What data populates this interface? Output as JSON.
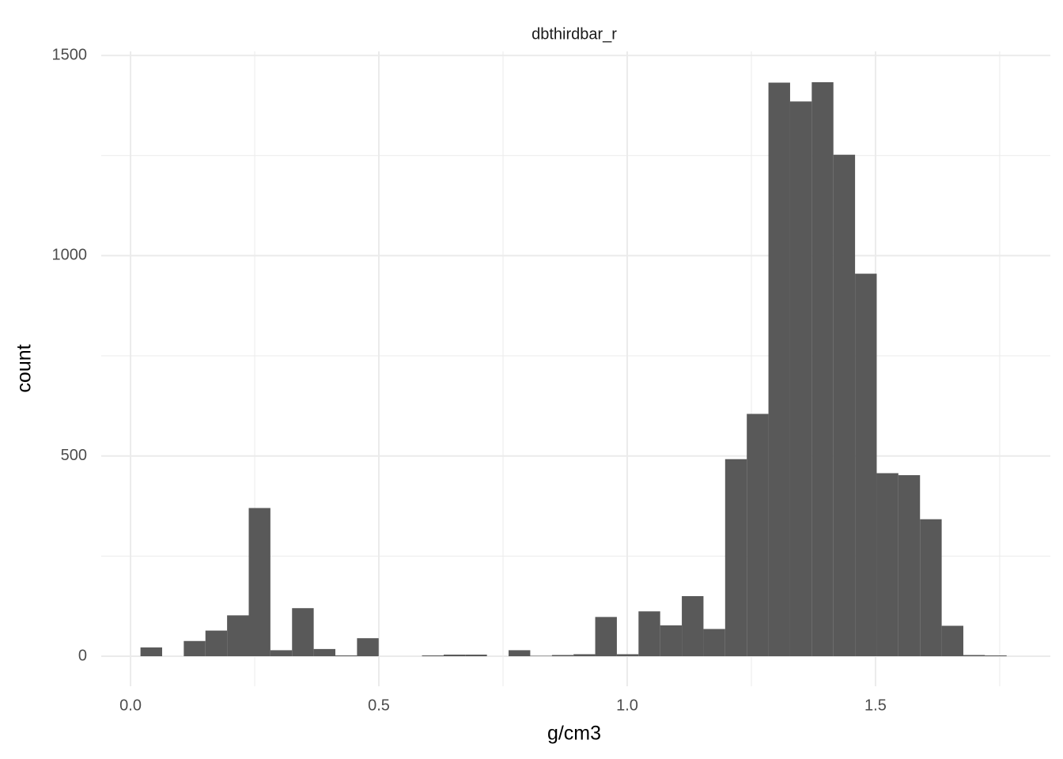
{
  "chart_data": {
    "type": "histogram",
    "title": "dbthirdbar_r",
    "xlabel": "g/cm3",
    "ylabel": "count",
    "bins": [
      0.02,
      0.0636,
      0.1072,
      0.1508,
      0.1944,
      0.238,
      0.2816,
      0.3252,
      0.3688,
      0.4124,
      0.456,
      0.4996,
      0.5432,
      0.5868,
      0.6304,
      0.674,
      0.7176,
      0.7612,
      0.8048,
      0.8484,
      0.892,
      0.9356,
      0.9792,
      1.0228,
      1.0664,
      1.11,
      1.1536,
      1.1972,
      1.2408,
      1.2844,
      1.328,
      1.3716,
      1.4152,
      1.4588,
      1.5024,
      1.546,
      1.5896,
      1.6332,
      1.6768,
      1.7204,
      1.764
    ],
    "values": [
      22,
      0,
      38,
      64,
      102,
      370,
      15,
      120,
      18,
      2,
      45,
      0,
      0,
      2,
      4,
      4,
      0,
      15,
      1,
      3,
      5,
      98,
      5,
      112,
      77,
      150,
      68,
      492,
      605,
      1432,
      1385,
      1433,
      1252,
      955,
      457,
      452,
      342,
      76,
      3,
      2
    ],
    "color": "#595959",
    "xlim": [
      -0.059,
      1.852
    ],
    "ylim": [
      -75,
      1510
    ],
    "xticks": [
      {
        "value": 0,
        "label": "0.0"
      },
      0.5,
      {
        "value": 1,
        "label": "1.0"
      },
      1.5
    ],
    "yticks": [
      0,
      500,
      1000,
      1500
    ],
    "x_minor_grid": [
      0.25,
      0.75,
      1.25,
      1.75
    ],
    "y_minor_grid": [
      250,
      750,
      1250
    ],
    "grid": true
  }
}
